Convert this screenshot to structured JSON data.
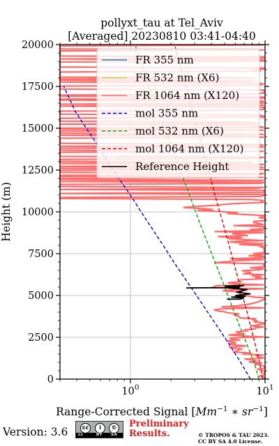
{
  "chart_data": {
    "type": "line",
    "title": [
      "pollyxt_tau at Tel_Aviv",
      "[Averaged] 20230810 03:41-04:40"
    ],
    "xlabel_prefix": "Range-Corrected Signal [",
    "xlabel_math": "Mm",
    "xlabel_exp1": "−1",
    "xlabel_mid": " ∗ ",
    "xlabel_math2": "sr",
    "xlabel_exp2": "−1",
    "xlabel_suffix": "]",
    "ylabel": "Height (m)",
    "xscale": "log",
    "xlim": [
      0.3,
      10
    ],
    "ylim": [
      0,
      20000
    ],
    "x_major_ticks": [
      {
        "value": 1,
        "label_base": "10",
        "label_exp": "0"
      },
      {
        "value": 10,
        "label_base": "10",
        "label_exp": "1"
      }
    ],
    "y_ticks": [
      0,
      2500,
      5000,
      7500,
      10000,
      12500,
      15000,
      17500,
      20000
    ],
    "y_tick_labels": [
      "0",
      "2500",
      "5000",
      "7500",
      "10000",
      "12500",
      "15000",
      "17500",
      "20000"
    ],
    "grid": true,
    "legend_position": "top-right",
    "series": [
      {
        "name": "FR 355 nm",
        "color": "#1f77b4",
        "style": "solid",
        "x": [],
        "y": []
      },
      {
        "name": "FR 532 nm (X6)",
        "color": "#bcd94a",
        "style": "solid",
        "x": [],
        "y": []
      },
      {
        "name": "FR 1064 nm (X120)",
        "color": "#ff6b6b",
        "style": "solid",
        "noisy": true,
        "x": [
          9.5,
          8.8,
          6.0,
          5.5,
          9.0,
          4.2,
          9.5,
          3.8,
          8.5,
          3.2,
          9.5,
          5.0,
          4.0,
          9.5,
          2.0,
          9.5,
          0.3,
          9.5,
          0.3,
          9.5,
          0.3,
          9.5,
          0.3,
          9.5,
          2.5,
          9.5,
          0.3,
          9.5,
          0.3,
          9.5
        ],
        "y": [
          200,
          900,
          1700,
          2600,
          3300,
          4200,
          4800,
          5500,
          6200,
          7000,
          7600,
          8200,
          8800,
          9600,
          10200,
          11000,
          11700,
          12500,
          13300,
          14100,
          14900,
          15600,
          16300,
          17000,
          17700,
          18300,
          18900,
          19400,
          19800,
          20000
        ]
      },
      {
        "name": "mol 355 nm",
        "color": "#0000dd",
        "style": "dashed",
        "x": [
          7.8,
          6.6,
          5.5,
          4.55,
          3.75,
          3.1,
          2.55,
          2.1,
          1.75,
          1.45,
          1.2,
          1.0,
          0.82,
          0.68,
          0.57,
          0.47,
          0.39,
          0.32
        ],
        "y": [
          0,
          1000,
          2000,
          3000,
          4000,
          5000,
          6000,
          7000,
          8000,
          9000,
          10000,
          11000,
          12000,
          13000,
          14000,
          15000,
          16000,
          17500
        ]
      },
      {
        "name": "mol 532 nm (X6)",
        "color": "#00aa00",
        "style": "dashed",
        "x": [
          9.0,
          8.3,
          7.4,
          6.6,
          5.9,
          5.3,
          4.75,
          4.25,
          3.8,
          3.4,
          3.05,
          2.75,
          2.47,
          2.22,
          2.0,
          1.8,
          1.6,
          1.45,
          1.3,
          1.2,
          1.08
        ],
        "y": [
          0,
          1000,
          2000,
          3000,
          4000,
          5000,
          6000,
          7000,
          8000,
          9000,
          10000,
          11000,
          12000,
          13000,
          14000,
          15000,
          16000,
          17000,
          18000,
          19000,
          20000
        ]
      },
      {
        "name": "mol 1064 nm (X120)",
        "color": "#dd0000",
        "style": "dashed",
        "x": [
          9.6,
          9.1,
          8.5,
          7.9,
          7.35,
          6.8,
          6.3,
          5.85,
          5.4,
          5.0,
          4.6,
          4.25,
          3.95,
          3.65,
          3.38,
          3.12,
          2.9,
          2.68,
          2.48,
          2.3,
          2.13
        ],
        "y": [
          0,
          1000,
          2000,
          3000,
          4000,
          5000,
          6000,
          7000,
          8000,
          9000,
          10000,
          11000,
          12000,
          13000,
          14000,
          15000,
          16000,
          17000,
          18000,
          19000,
          20000
        ]
      },
      {
        "name": "Reference Height",
        "color": "#000000",
        "style": "solid",
        "x": [
          2.6,
          6.5,
          5.0,
          7.0,
          5.3,
          7.4,
          6.1,
          7.8,
          6.0,
          7.2,
          5.6,
          7.0,
          6.5,
          5.2
        ],
        "y": [
          5450,
          5480,
          5560,
          5600,
          5450,
          5350,
          5200,
          5100,
          5000,
          4950,
          4900,
          4850,
          4780,
          4780
        ]
      }
    ]
  },
  "footer": {
    "version": "Version: 3.6",
    "cc_labels": [
      "cc",
      "BY",
      "SA"
    ],
    "cc_symbols": [
      "cc",
      "i",
      "©"
    ],
    "preliminary": [
      "Preliminary",
      "Results."
    ],
    "copyright": [
      "© TROPOS & TAU 2023.",
      "CC BY SA 4.0 License."
    ]
  }
}
